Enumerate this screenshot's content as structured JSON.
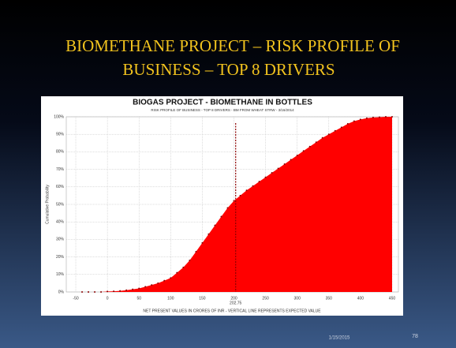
{
  "slide": {
    "title_lines": [
      "BIOMETHANE  PROJECT – RISK PROFILE OF",
      "BUSINESS  – TOP 8 DRIVERS"
    ],
    "date": "1/15/2015",
    "page": "78"
  },
  "chart_data": {
    "type": "cumulative",
    "title": "BIOGAS PROJECT - BIOMETHANE IN BOTTLES",
    "subtitle": "RISK PROFILE OF BUSINESS - TOP 8 DRIVERS - BM FROM WHEAT STRW - 3/16/2014",
    "x_label": "NET PRESENT VALUES IN CRORES OF INR - VERTICAL LINE REPRESENTS EXPECTED VALUE",
    "y_label": "Cumulative Probability",
    "color": "#ff0000",
    "expected_value": 202.75,
    "x": [
      -40,
      -30,
      -20,
      -10,
      0,
      10,
      20,
      30,
      40,
      50,
      60,
      70,
      80,
      90,
      100,
      110,
      120,
      130,
      140,
      150,
      160,
      170,
      180,
      190,
      200,
      210,
      220,
      230,
      240,
      250,
      260,
      270,
      280,
      290,
      300,
      310,
      320,
      330,
      340,
      350,
      360,
      370,
      380,
      390,
      400,
      410,
      420,
      430,
      440,
      450
    ],
    "values": [
      0,
      0,
      0,
      0,
      0.3,
      0.4,
      0.6,
      1,
      1.5,
      2,
      3,
      4,
      5,
      6.5,
      8,
      11,
      14,
      18,
      23,
      28,
      33,
      38,
      43,
      48,
      52,
      55,
      58,
      60.5,
      63,
      65.5,
      68,
      70.5,
      73,
      75.5,
      78,
      80.5,
      83,
      85.5,
      88,
      90,
      92,
      94,
      96,
      97.5,
      98.5,
      99.2,
      99.6,
      99.8,
      100,
      100
    ],
    "xlim": [
      -65,
      460
    ],
    "xticks": [
      -50,
      0,
      50,
      100,
      150,
      200,
      250,
      300,
      350,
      400,
      450
    ],
    "ylim": [
      0,
      100
    ],
    "yticks": [
      {
        "value": 0,
        "label": "0%"
      },
      {
        "value": 10,
        "label": "10%"
      },
      {
        "value": 20,
        "label": "20%"
      },
      {
        "value": 30,
        "label": "30%"
      },
      {
        "value": 40,
        "label": "40%"
      },
      {
        "value": 50,
        "label": "50%"
      },
      {
        "value": 60,
        "label": "60%"
      },
      {
        "value": 70,
        "label": "70%"
      },
      {
        "value": 80,
        "label": "80%"
      },
      {
        "value": 90,
        "label": "90%"
      },
      {
        "value": 100,
        "label": "100%"
      }
    ],
    "grid": true
  }
}
